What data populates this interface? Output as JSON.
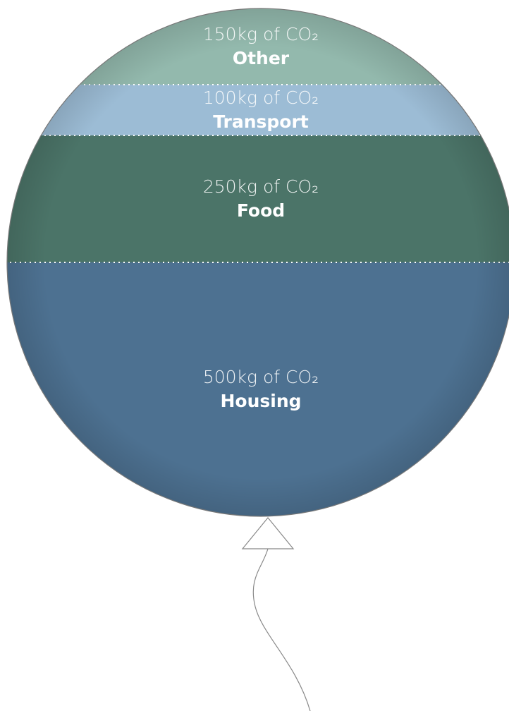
{
  "chart_data": {
    "type": "balloon",
    "categories": [
      "Other",
      "Transport",
      "Food",
      "Housing"
    ],
    "values": [
      150,
      100,
      250,
      500
    ],
    "value_labels": [
      "150kg of CO₂",
      "100kg of CO₂",
      "250kg of CO₂",
      "500kg of CO₂"
    ],
    "colors": [
      "#93b9ad",
      "#9cbcd5",
      "#4b7468",
      "#4d7191"
    ]
  }
}
